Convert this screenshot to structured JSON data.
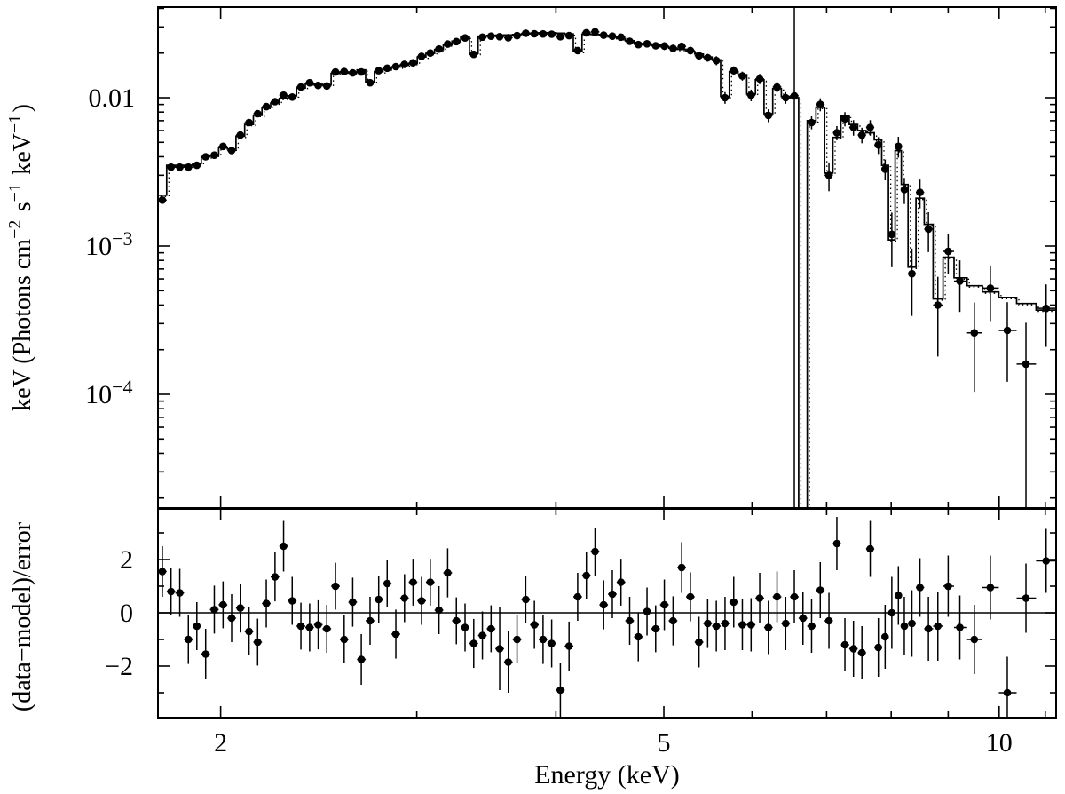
{
  "figure": {
    "bg": "#ffffff",
    "fg": "#000000",
    "bar_color": "#222222"
  },
  "axes": {
    "x": {
      "label": "Energy (keV)",
      "scale": "log",
      "min": 1.757,
      "max": 11.25,
      "major_ticks": [
        2,
        5,
        10
      ],
      "major_tick_labels": [
        "2",
        "5",
        "10"
      ],
      "minor_ticks": [
        3,
        4,
        6,
        7,
        8,
        9,
        11
      ]
    },
    "y_top": {
      "label_parts": [
        {
          "t": "keV (Photons cm"
        },
        {
          "sup": "−2"
        },
        {
          "t": " s"
        },
        {
          "sup": "−1"
        },
        {
          "t": " keV"
        },
        {
          "sup": "−1"
        },
        {
          "t": ")"
        }
      ],
      "scale": "log",
      "min": 1.7e-05,
      "max": 0.0408,
      "major_ticks": [
        0.01,
        0.001,
        0.0001
      ],
      "major_tick_labels": [
        {
          "t": "0.01"
        },
        {
          "t": "10",
          "sup": "−3"
        },
        {
          "t": "10",
          "sup": "−4"
        }
      ]
    },
    "y_bottom": {
      "label_parts": [
        {
          "t": "(data−model)/error"
        }
      ],
      "scale": "linear",
      "min": -3.93,
      "max": 3.9,
      "major_ticks": [
        2,
        0,
        -2
      ],
      "major_tick_labels": [
        "2",
        "0",
        "−2"
      ],
      "minor_ticks": [
        3,
        1,
        -1,
        -3
      ],
      "zero_line": 0
    }
  },
  "chart_data": {
    "type": "spectrum+residuals",
    "description": "X-ray unfolded spectrum: data points with error bars, stepped model histogram (solid) plus dotted companion model; lower panel shows (data-model)/error residuals.",
    "energy_kev": [
      1.773,
      1.805,
      1.838,
      1.871,
      1.904,
      1.939,
      1.974,
      2.01,
      2.046,
      2.083,
      2.121,
      2.159,
      2.198,
      2.238,
      2.278,
      2.319,
      2.361,
      2.404,
      2.447,
      2.491,
      2.536,
      2.582,
      2.628,
      2.675,
      2.724,
      2.773,
      2.822,
      2.873,
      2.925,
      2.977,
      3.03,
      3.085,
      3.141,
      3.198,
      3.256,
      3.315,
      3.375,
      3.436,
      3.498,
      3.561,
      3.625,
      3.691,
      3.758,
      3.826,
      3.895,
      3.965,
      4.037,
      4.11,
      4.184,
      4.26,
      4.337,
      4.415,
      4.495,
      4.576,
      4.659,
      4.743,
      4.829,
      4.916,
      5.005,
      5.096,
      5.188,
      5.282,
      5.377,
      5.474,
      5.573,
      5.674,
      5.777,
      5.881,
      5.988,
      6.096,
      6.206,
      6.318,
      6.432,
      6.548,
      6.666,
      6.786,
      6.909,
      7.034,
      7.15,
      7.27,
      7.4,
      7.53,
      7.66,
      7.79,
      7.9,
      8.01,
      8.12,
      8.22,
      8.35,
      8.49,
      8.64,
      8.81,
      9.0,
      9.22,
      9.5,
      9.82,
      10.17,
      10.57,
      11.02
    ],
    "top": {
      "data_flux": [
        0.00204,
        0.0034,
        0.0034,
        0.0034,
        0.0035,
        0.004,
        0.0041,
        0.0047,
        0.0044,
        0.0056,
        0.0068,
        0.0078,
        0.0087,
        0.0094,
        0.0104,
        0.0101,
        0.0118,
        0.0126,
        0.0121,
        0.012,
        0.0149,
        0.015,
        0.0147,
        0.0149,
        0.0126,
        0.0152,
        0.0158,
        0.0162,
        0.0168,
        0.0172,
        0.019,
        0.02,
        0.0213,
        0.023,
        0.0239,
        0.0253,
        0.0196,
        0.0256,
        0.026,
        0.0258,
        0.0254,
        0.0262,
        0.0272,
        0.027,
        0.0269,
        0.0268,
        0.0258,
        0.0262,
        0.0208,
        0.0274,
        0.0278,
        0.0264,
        0.026,
        0.0256,
        0.024,
        0.0228,
        0.0231,
        0.0224,
        0.0223,
        0.0215,
        0.0222,
        0.0208,
        0.0192,
        0.0186,
        0.0178,
        0.01,
        0.0152,
        0.014,
        0.0104,
        0.0134,
        0.0076,
        0.0118,
        0.01,
        0.0103,
        1.2e-05,
        0.0068,
        0.009,
        0.003,
        0.0058,
        0.0072,
        0.0063,
        0.0056,
        0.0063,
        0.0048,
        0.0033,
        0.0012,
        0.0047,
        0.0024,
        0.00065,
        0.0023,
        0.0013,
        0.0004,
        0.00092,
        0.00058,
        0.00026,
        0.00052,
        0.00027,
        0.00016,
        0.00038
      ],
      "flux_err_rel": [
        0.05,
        0.05,
        0.05,
        0.05,
        0.05,
        0.05,
        0.05,
        0.05,
        0.05,
        0.05,
        0.05,
        0.05,
        0.05,
        0.05,
        0.05,
        0.05,
        0.05,
        0.05,
        0.05,
        0.05,
        0.05,
        0.05,
        0.05,
        0.05,
        0.05,
        0.05,
        0.05,
        0.05,
        0.05,
        0.05,
        0.04,
        0.04,
        0.04,
        0.04,
        0.04,
        0.04,
        0.04,
        0.04,
        0.04,
        0.04,
        0.04,
        0.04,
        0.04,
        0.04,
        0.04,
        0.04,
        0.04,
        0.04,
        0.04,
        0.04,
        0.04,
        0.04,
        0.04,
        0.04,
        0.04,
        0.04,
        0.04,
        0.04,
        0.06,
        0.06,
        0.06,
        0.06,
        0.06,
        0.06,
        0.07,
        0.09,
        0.07,
        0.07,
        0.09,
        0.08,
        0.1,
        0.08,
        0.09,
        60,
        0.1,
        0.1,
        0.1,
        0.22,
        0.11,
        0.11,
        0.12,
        0.12,
        0.12,
        0.13,
        0.16,
        0.4,
        0.16,
        0.2,
        0.48,
        0.22,
        0.3,
        0.55,
        0.3,
        0.38,
        0.6,
        0.4,
        0.55,
        0.9,
        0.45
      ],
      "model_flux": [
        0.0022,
        0.0035,
        0.0035,
        0.0035,
        0.0036,
        0.004,
        0.0041,
        0.0046,
        0.0045,
        0.0055,
        0.0066,
        0.0076,
        0.0086,
        0.0092,
        0.0099,
        0.0103,
        0.0116,
        0.0124,
        0.0123,
        0.0122,
        0.0146,
        0.0149,
        0.0148,
        0.0154,
        0.0128,
        0.015,
        0.0156,
        0.0161,
        0.0166,
        0.017,
        0.0188,
        0.0199,
        0.0211,
        0.0227,
        0.0241,
        0.0256,
        0.0199,
        0.026,
        0.0263,
        0.0264,
        0.0265,
        0.0267,
        0.027,
        0.0272,
        0.0274,
        0.0274,
        0.0272,
        0.0269,
        0.0205,
        0.0268,
        0.0267,
        0.0263,
        0.0257,
        0.025,
        0.0242,
        0.0232,
        0.0231,
        0.0227,
        0.0221,
        0.0216,
        0.0212,
        0.0205,
        0.0197,
        0.0188,
        0.018,
        0.0102,
        0.015,
        0.0143,
        0.0106,
        0.0132,
        0.0078,
        0.0115,
        0.0102,
        0.01,
        1e-05,
        0.007,
        0.0086,
        0.0031,
        0.0054,
        0.0075,
        0.0066,
        0.006,
        0.0058,
        0.0052,
        0.0035,
        0.0011,
        0.0044,
        0.0026,
        0.00072,
        0.0021,
        0.0014,
        0.00044,
        0.00084,
        0.00061,
        0.00054,
        0.00049,
        0.00045,
        0.00041,
        0.00037
      ]
    },
    "bottom": {
      "residuals": [
        1.55,
        0.8,
        0.75,
        -1.0,
        -0.5,
        -1.55,
        0.12,
        0.3,
        -0.2,
        0.18,
        -0.7,
        -1.1,
        0.35,
        1.35,
        2.5,
        0.45,
        -0.5,
        -0.55,
        -0.45,
        -0.6,
        1.0,
        -1.0,
        0.4,
        -1.75,
        -0.3,
        0.5,
        1.1,
        -0.8,
        0.55,
        1.15,
        0.45,
        1.15,
        0.1,
        1.5,
        -0.3,
        -0.55,
        -1.15,
        -0.85,
        -0.6,
        -1.35,
        -1.85,
        -1.0,
        0.5,
        -0.45,
        -1.0,
        -1.15,
        -2.9,
        -1.25,
        0.6,
        1.4,
        2.3,
        0.3,
        0.7,
        1.15,
        -0.3,
        -0.9,
        0.05,
        -0.6,
        0.3,
        -0.3,
        1.7,
        0.6,
        -1.1,
        -0.4,
        -0.5,
        -0.4,
        0.4,
        -0.45,
        -0.45,
        0.55,
        -0.55,
        0.6,
        -0.4,
        0.6,
        -0.2,
        -0.5,
        0.85,
        -0.3,
        2.6,
        -1.2,
        -1.35,
        -1.5,
        2.4,
        -1.3,
        -0.9,
        0.0,
        0.65,
        -0.5,
        -0.4,
        0.95,
        -0.6,
        -0.5,
        1.0,
        -0.55,
        -1.0,
        0.95,
        -3.0,
        0.55,
        1.95
      ],
      "residual_err": [
        0.95,
        0.9,
        0.9,
        0.92,
        0.9,
        0.95,
        0.9,
        0.88,
        0.9,
        0.92,
        0.9,
        0.88,
        0.9,
        0.92,
        0.95,
        0.9,
        0.88,
        0.9,
        0.92,
        0.9,
        0.88,
        0.9,
        0.92,
        0.95,
        0.9,
        0.88,
        0.9,
        0.92,
        0.9,
        0.88,
        0.9,
        0.88,
        0.9,
        0.92,
        0.88,
        0.9,
        0.92,
        0.9,
        0.88,
        1.55,
        1.15,
        0.9,
        0.88,
        0.9,
        0.92,
        0.9,
        1.0,
        0.92,
        0.9,
        0.88,
        0.9,
        0.92,
        0.9,
        0.88,
        0.9,
        0.92,
        0.9,
        0.88,
        0.95,
        0.92,
        0.95,
        0.92,
        0.95,
        0.92,
        0.95,
        1.0,
        0.95,
        0.95,
        1.0,
        0.95,
        1.0,
        0.95,
        1.0,
        1.0,
        1.0,
        1.0,
        1.05,
        1.05,
        1.0,
        1.0,
        1.05,
        1.0,
        1.05,
        1.1,
        1.2,
        1.35,
        1.1,
        1.1,
        1.25,
        1.1,
        1.2,
        1.3,
        1.15,
        1.2,
        1.3,
        1.2,
        1.35,
        1.3,
        1.2
      ]
    }
  }
}
